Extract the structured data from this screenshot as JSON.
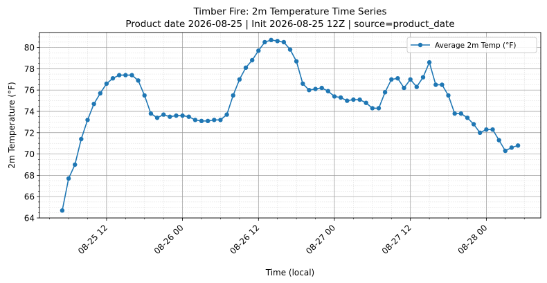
{
  "chart_data": {
    "type": "line",
    "title": "Timber Fire: 2m Temperature Time Series",
    "subtitle": "Product date 2026-08-25 | Init 2026-08-25 12Z | source=product_date",
    "xlabel": "Time (local)",
    "ylabel": "2m Temperature (°F)",
    "ylim": [
      64,
      81.4
    ],
    "yticks": [
      64,
      66,
      68,
      70,
      72,
      74,
      76,
      78,
      80
    ],
    "xticks": [
      "08-25 12",
      "08-26 00",
      "08-26 12",
      "08-27 00",
      "08-27 12",
      "08-28 00"
    ],
    "grid": true,
    "legend_position": "top-right",
    "color": "#1f77b4",
    "series": [
      {
        "name": "Average 2m Temp (°F)",
        "x": [
          "08-25 05:00",
          "08-25 06:00",
          "08-25 07:00",
          "08-25 08:00",
          "08-25 09:00",
          "08-25 10:00",
          "08-25 11:00",
          "08-25 12:00",
          "08-25 13:00",
          "08-25 14:00",
          "08-25 15:00",
          "08-25 16:00",
          "08-25 17:00",
          "08-25 18:00",
          "08-25 19:00",
          "08-25 20:00",
          "08-25 21:00",
          "08-25 22:00",
          "08-25 23:00",
          "08-26 00:00",
          "08-26 01:00",
          "08-26 02:00",
          "08-26 03:00",
          "08-26 04:00",
          "08-26 05:00",
          "08-26 06:00",
          "08-26 07:00",
          "08-26 08:00",
          "08-26 09:00",
          "08-26 10:00",
          "08-26 11:00",
          "08-26 12:00",
          "08-26 13:00",
          "08-26 14:00",
          "08-26 15:00",
          "08-26 16:00",
          "08-26 17:00",
          "08-26 18:00",
          "08-26 19:00",
          "08-26 20:00",
          "08-26 21:00",
          "08-26 22:00",
          "08-26 23:00",
          "08-27 00:00",
          "08-27 01:00",
          "08-27 02:00",
          "08-27 03:00",
          "08-27 04:00",
          "08-27 05:00",
          "08-27 06:00",
          "08-27 07:00",
          "08-27 08:00",
          "08-27 09:00",
          "08-27 10:00",
          "08-27 11:00",
          "08-27 12:00",
          "08-27 13:00",
          "08-27 14:00",
          "08-27 15:00",
          "08-27 16:00",
          "08-27 17:00",
          "08-27 18:00",
          "08-27 19:00",
          "08-27 20:00",
          "08-27 21:00",
          "08-27 22:00",
          "08-27 23:00",
          "08-28 00:00",
          "08-28 01:00",
          "08-28 02:00",
          "08-28 03:00",
          "08-28 04:00",
          "08-28 05:00"
        ],
        "values": [
          64.7,
          67.7,
          69.0,
          71.4,
          73.2,
          74.7,
          75.7,
          76.6,
          77.1,
          77.4,
          77.4,
          77.4,
          76.9,
          75.5,
          73.8,
          73.4,
          73.7,
          73.5,
          73.6,
          73.6,
          73.5,
          73.2,
          73.1,
          73.1,
          73.2,
          73.2,
          73.7,
          75.5,
          77.0,
          78.1,
          78.8,
          79.7,
          80.5,
          80.7,
          80.6,
          80.5,
          79.8,
          78.7,
          76.6,
          76.0,
          76.1,
          76.2,
          75.9,
          75.4,
          75.3,
          75.0,
          75.1,
          75.1,
          74.8,
          74.3,
          74.3,
          75.8,
          77.0,
          77.1,
          76.2,
          77.0,
          76.3,
          77.2,
          78.6,
          76.5,
          76.5,
          75.5,
          73.8,
          73.8,
          73.4,
          72.8,
          72.0,
          72.3,
          72.3,
          71.3,
          70.3,
          70.6,
          70.8
        ]
      }
    ]
  }
}
